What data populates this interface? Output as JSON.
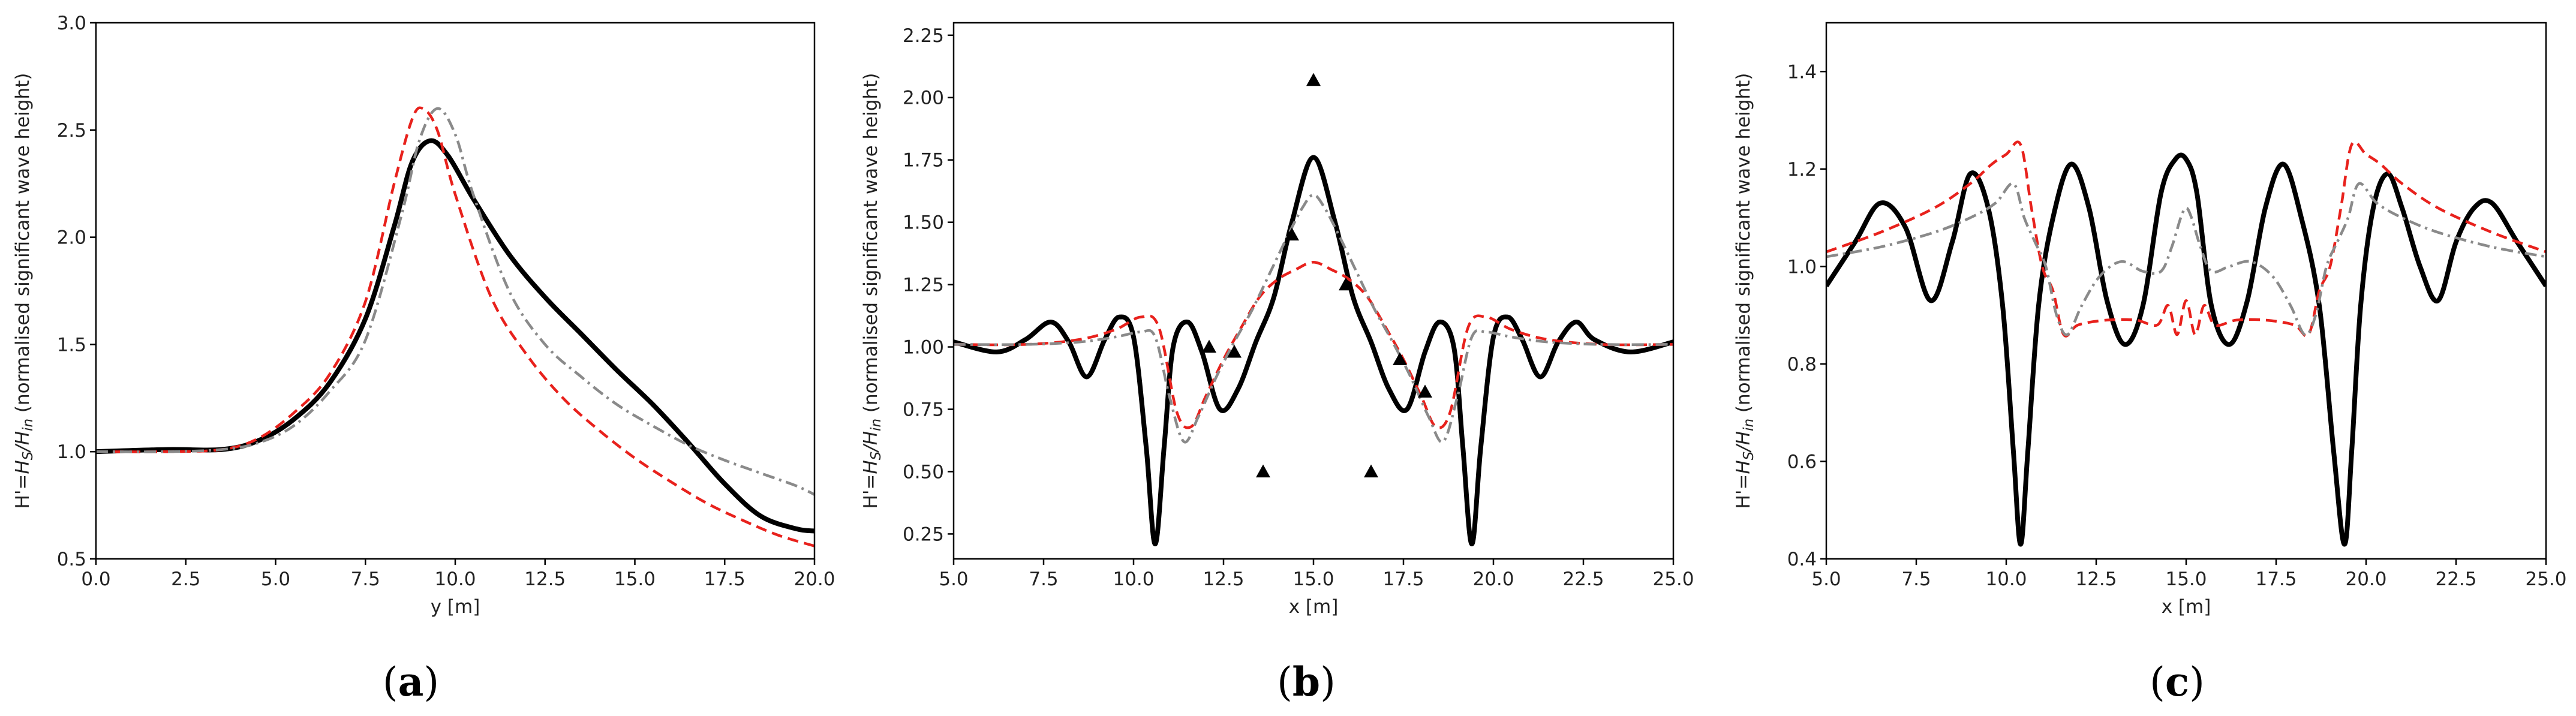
{
  "chart_data": [
    {
      "type": "line",
      "panel_label": "(a)",
      "xlabel": "y [m]",
      "ylabel_parts": [
        "H'=",
        "H",
        "S",
        "/",
        "H",
        "in",
        " (normalised significant wave height)"
      ],
      "xlim": [
        0,
        20
      ],
      "ylim": [
        0.5,
        3.0
      ],
      "xticks": [
        0,
        2.5,
        5,
        7.5,
        10,
        12.5,
        15,
        17.5,
        20
      ],
      "xtick_labels": [
        "0.0",
        "2.5",
        "5.0",
        "7.5",
        "10.0",
        "12.5",
        "15.0",
        "17.5",
        "20.0"
      ],
      "yticks": [
        0.5,
        1.0,
        1.5,
        2.0,
        2.5,
        3.0
      ],
      "ytick_labels": [
        "0.5",
        "1.0",
        "1.5",
        "2.0",
        "2.5",
        "3.0"
      ],
      "series": [
        {
          "style": "solid-black",
          "color": "#000000",
          "x": [
            0,
            2,
            3.5,
            4.5,
            5.5,
            6.5,
            7.5,
            8.3,
            8.8,
            9.3,
            9.8,
            10.5,
            11.5,
            12.5,
            13.5,
            14.5,
            15.5,
            16.5,
            17.5,
            18.5,
            19.5,
            20
          ],
          "y": [
            1.0,
            1.01,
            1.01,
            1.05,
            1.15,
            1.32,
            1.62,
            2.05,
            2.35,
            2.45,
            2.38,
            2.18,
            1.92,
            1.72,
            1.55,
            1.38,
            1.22,
            1.04,
            0.85,
            0.7,
            0.64,
            0.63
          ]
        },
        {
          "style": "dashed-red",
          "color": "#e8211c",
          "x": [
            0,
            2,
            3.5,
            4.5,
            5.5,
            6.5,
            7.5,
            8.3,
            8.8,
            9.1,
            9.5,
            10.0,
            11.0,
            12.0,
            13.0,
            14.0,
            15.0,
            16.0,
            17.0,
            18.0,
            19.0,
            20
          ],
          "y": [
            1.0,
            1.0,
            1.01,
            1.06,
            1.18,
            1.36,
            1.7,
            2.25,
            2.55,
            2.6,
            2.5,
            2.2,
            1.72,
            1.45,
            1.25,
            1.1,
            0.97,
            0.86,
            0.76,
            0.68,
            0.61,
            0.56
          ]
        },
        {
          "style": "dashdot-grey",
          "color": "#8a8a8a",
          "x": [
            0,
            2,
            3.5,
            4.5,
            5.5,
            6.5,
            7.5,
            8.5,
            9.0,
            9.5,
            10.0,
            10.5,
            11.5,
            12.5,
            13.5,
            14.5,
            15.5,
            16.5,
            17.5,
            18.5,
            19.5,
            20
          ],
          "y": [
            1.0,
            1.0,
            1.01,
            1.04,
            1.12,
            1.28,
            1.52,
            2.1,
            2.45,
            2.6,
            2.48,
            2.2,
            1.75,
            1.5,
            1.35,
            1.22,
            1.12,
            1.03,
            0.96,
            0.9,
            0.84,
            0.8
          ]
        }
      ]
    },
    {
      "type": "line",
      "panel_label": "(b)",
      "xlabel": "x [m]",
      "ylabel_parts": [
        "H'=",
        "H",
        "S",
        "/",
        "H",
        "in",
        " (normalised significant wave height)"
      ],
      "xlim": [
        5,
        25
      ],
      "ylim": [
        0.15,
        2.3
      ],
      "xticks": [
        5,
        7.5,
        10,
        12.5,
        15,
        17.5,
        20,
        22.5,
        25
      ],
      "xtick_labels": [
        "5.0",
        "7.5",
        "10.0",
        "12.5",
        "15.0",
        "17.5",
        "20.0",
        "22.5",
        "25.0"
      ],
      "yticks": [
        0.25,
        0.5,
        0.75,
        1.0,
        1.25,
        1.5,
        1.75,
        2.0,
        2.25
      ],
      "ytick_labels": [
        "0.25",
        "0.50",
        "0.75",
        "1.00",
        "1.25",
        "1.50",
        "1.75",
        "2.00",
        "2.25"
      ],
      "series": [
        {
          "style": "solid-black",
          "color": "#000000",
          "x": [
            5,
            6.2,
            7,
            7.7,
            8.2,
            8.7,
            9.2,
            9.6,
            10.0,
            10.35,
            10.6,
            10.85,
            11.1,
            11.5,
            11.9,
            12.4,
            12.9,
            13.4,
            13.9,
            14.4,
            15.0,
            15.6,
            16.1,
            16.6,
            17.1,
            17.6,
            18.1,
            18.5,
            18.9,
            19.15,
            19.4,
            19.65,
            20.0,
            20.4,
            20.8,
            21.3,
            21.8,
            22.3,
            22.8,
            23.8,
            25
          ],
          "y": [
            1.02,
            0.98,
            1.03,
            1.1,
            1.02,
            0.88,
            1.03,
            1.12,
            1.04,
            0.6,
            0.21,
            0.6,
            1.0,
            1.1,
            0.98,
            0.75,
            0.83,
            1.02,
            1.2,
            1.5,
            1.76,
            1.5,
            1.2,
            1.02,
            0.83,
            0.75,
            0.98,
            1.1,
            1.0,
            0.6,
            0.21,
            0.6,
            1.04,
            1.12,
            1.03,
            0.88,
            1.02,
            1.1,
            1.03,
            0.98,
            1.02
          ]
        },
        {
          "style": "dashed-red",
          "color": "#e8211c",
          "x": [
            5,
            7,
            8.5,
            9.5,
            10.2,
            10.7,
            11.2,
            11.6,
            12.0,
            12.5,
            13.0,
            13.5,
            14.0,
            14.5,
            15.0,
            15.5,
            16.0,
            16.5,
            17.0,
            17.5,
            18.0,
            18.4,
            18.8,
            19.3,
            19.8,
            20.5,
            21.5,
            23,
            25
          ],
          "y": [
            1.01,
            1.01,
            1.03,
            1.07,
            1.12,
            1.08,
            0.74,
            0.68,
            0.8,
            0.95,
            1.08,
            1.2,
            1.27,
            1.31,
            1.34,
            1.31,
            1.27,
            1.2,
            1.08,
            0.95,
            0.8,
            0.68,
            0.74,
            1.08,
            1.12,
            1.07,
            1.03,
            1.01,
            1.01
          ]
        },
        {
          "style": "dashdot-grey",
          "color": "#8a8a8a",
          "x": [
            5,
            7,
            8.5,
            9.5,
            10.2,
            10.6,
            11.0,
            11.4,
            11.8,
            12.3,
            12.8,
            13.3,
            13.8,
            14.3,
            14.7,
            15.0,
            15.3,
            15.7,
            16.2,
            16.7,
            17.2,
            17.7,
            18.2,
            18.6,
            19.0,
            19.4,
            19.8,
            20.5,
            21.5,
            23,
            25
          ],
          "y": [
            1.01,
            1.01,
            1.02,
            1.04,
            1.06,
            1.04,
            0.8,
            0.62,
            0.72,
            0.88,
            1.02,
            1.15,
            1.3,
            1.45,
            1.56,
            1.61,
            1.56,
            1.45,
            1.3,
            1.15,
            1.02,
            0.88,
            0.72,
            0.62,
            0.8,
            1.04,
            1.06,
            1.04,
            1.02,
            1.01,
            1.01
          ]
        }
      ],
      "markers": {
        "style": "triangle-black",
        "color": "#000000",
        "x": [
          12.1,
          12.8,
          13.6,
          14.4,
          15.0,
          15.9,
          16.6,
          17.4,
          18.1
        ],
        "y": [
          1.0,
          0.98,
          0.5,
          1.45,
          2.07,
          1.25,
          0.5,
          0.95,
          0.82
        ]
      }
    },
    {
      "type": "line",
      "panel_label": "(c)",
      "xlabel": "x [m]",
      "ylabel_parts": [
        "H'=",
        "H",
        "S",
        "/",
        "H",
        "in",
        " (normalised significant wave height)"
      ],
      "xlim": [
        5,
        25
      ],
      "ylim": [
        0.4,
        1.5
      ],
      "xticks": [
        5,
        7.5,
        10,
        12.5,
        15,
        17.5,
        20,
        22.5,
        25
      ],
      "xtick_labels": [
        "5.0",
        "7.5",
        "10.0",
        "12.5",
        "15.0",
        "17.5",
        "20.0",
        "22.5",
        "25.0"
      ],
      "yticks": [
        0.4,
        0.6,
        0.8,
        1.0,
        1.2,
        1.4
      ],
      "ytick_labels": [
        "0.4",
        "0.6",
        "0.8",
        "1.0",
        "1.2",
        "1.4"
      ],
      "series": [
        {
          "style": "solid-black",
          "color": "#000000",
          "x": [
            5,
            5.8,
            6.5,
            7.2,
            7.9,
            8.5,
            9.0,
            9.5,
            9.9,
            10.2,
            10.4,
            10.6,
            10.9,
            11.3,
            11.8,
            12.3,
            12.8,
            13.3,
            13.8,
            14.3,
            14.7,
            15.0,
            15.3,
            15.7,
            16.2,
            16.7,
            17.2,
            17.7,
            18.2,
            18.7,
            19.1,
            19.4,
            19.6,
            19.85,
            20.2,
            20.6,
            21.0,
            21.5,
            22.0,
            22.5,
            23.0,
            23.5,
            24.2,
            25
          ],
          "y": [
            0.96,
            1.05,
            1.13,
            1.08,
            0.93,
            1.05,
            1.19,
            1.12,
            0.92,
            0.62,
            0.43,
            0.62,
            0.92,
            1.1,
            1.21,
            1.12,
            0.93,
            0.84,
            0.92,
            1.15,
            1.22,
            1.22,
            1.15,
            0.92,
            0.84,
            0.93,
            1.12,
            1.21,
            1.1,
            0.92,
            0.62,
            0.43,
            0.62,
            0.92,
            1.12,
            1.19,
            1.12,
            1.0,
            0.93,
            1.05,
            1.12,
            1.13,
            1.05,
            0.96
          ]
        },
        {
          "style": "dashed-red",
          "color": "#e8211c",
          "x": [
            5,
            6.5,
            8,
            9,
            9.6,
            10.0,
            10.4,
            10.7,
            11.0,
            11.3,
            11.6,
            12.0,
            12.8,
            13.6,
            14.2,
            14.5,
            14.75,
            15.0,
            15.25,
            15.5,
            15.8,
            16.4,
            17.2,
            18.0,
            18.4,
            18.7,
            19.0,
            19.3,
            19.6,
            20.0,
            20.4,
            21.0,
            22.0,
            23.5,
            25
          ],
          "y": [
            1.03,
            1.07,
            1.12,
            1.17,
            1.21,
            1.23,
            1.25,
            1.12,
            1.0,
            0.95,
            0.86,
            0.88,
            0.89,
            0.89,
            0.88,
            0.92,
            0.86,
            0.93,
            0.86,
            0.92,
            0.88,
            0.89,
            0.89,
            0.88,
            0.86,
            0.95,
            1.0,
            1.12,
            1.25,
            1.23,
            1.21,
            1.17,
            1.12,
            1.07,
            1.03
          ]
        },
        {
          "style": "dashdot-grey",
          "color": "#8a8a8a",
          "x": [
            5,
            6.5,
            8,
            9,
            9.7,
            10.2,
            10.5,
            10.8,
            11.1,
            11.4,
            11.7,
            12.1,
            12.6,
            13.2,
            13.8,
            14.3,
            14.6,
            14.85,
            15.0,
            15.15,
            15.4,
            15.7,
            16.2,
            16.8,
            17.4,
            17.9,
            18.3,
            18.6,
            18.9,
            19.2,
            19.5,
            19.8,
            20.3,
            21.0,
            22.0,
            23.5,
            25
          ],
          "y": [
            1.02,
            1.04,
            1.07,
            1.1,
            1.13,
            1.17,
            1.1,
            1.05,
            1.0,
            0.9,
            0.86,
            0.92,
            0.98,
            1.01,
            0.99,
            0.99,
            1.04,
            1.1,
            1.12,
            1.1,
            1.04,
            0.99,
            1.0,
            1.01,
            0.98,
            0.92,
            0.86,
            0.9,
            1.0,
            1.05,
            1.1,
            1.17,
            1.13,
            1.1,
            1.07,
            1.04,
            1.02
          ]
        }
      ]
    }
  ]
}
